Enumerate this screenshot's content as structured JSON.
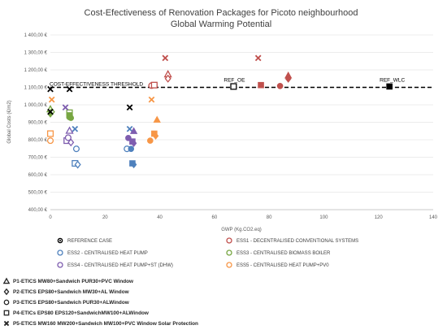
{
  "chart_data": {
    "type": "scatter",
    "title": [
      "Cost-Efectiveness of Renovation Packages for Picoto neighbourhood",
      "Global Warming Potential"
    ],
    "xlabel": "GWP (Kg.CO2.eq)",
    "ylabel": "Global Costs (€/m2)",
    "xlim": [
      0,
      140
    ],
    "ylim": [
      400,
      1400
    ],
    "x_ticks": [
      "0",
      "20",
      "40",
      "60",
      "80",
      "100",
      "120",
      "140"
    ],
    "y_ticks": [
      "400,00 €",
      "500,00 €",
      "600,00 €",
      "700,00 €",
      "800,00 €",
      "900,00 €",
      "1 000,00 €",
      "1 100,00 €",
      "1 200,00 €",
      "1 300,00 €",
      "1 400,00 €"
    ],
    "grid": "horizontal",
    "threshold": {
      "label": "COST-EFFECTIVENESS THRESHOLD",
      "y": 1100,
      "color": "#000000"
    },
    "annotations": [
      {
        "text": "REF_OE",
        "x": 67,
        "y": 1105
      },
      {
        "text": "REF_WLC",
        "x": 124,
        "y": 1105
      }
    ],
    "systems": [
      {
        "key": "ref",
        "name": "REFERENCE CASE",
        "color": "#000000"
      },
      {
        "key": "ess1",
        "name": "ESS1 - DECENTRALISED CONVENTIONAL SYSTEMS",
        "color": "#C0504D"
      },
      {
        "key": "ess2",
        "name": "ESS2 - CENTRALISED HEAT PUMP",
        "color": "#4F81BD"
      },
      {
        "key": "ess3",
        "name": "ESS3 - CENTRALISED BIOMASS BOILER",
        "color": "#77A642"
      },
      {
        "key": "ess4",
        "name": "ESS4 - CENTRALISED HEAT PUMP+ST (DHW)",
        "color": "#7E5DAF"
      },
      {
        "key": "ess5",
        "name": "ESS5 - CENTRALISED HEAT PUMP+PV0",
        "color": "#F79646"
      }
    ],
    "series": [
      {
        "system": "ref",
        "package": "P4",
        "filled": false,
        "points": [
          [
            67,
            1105
          ]
        ]
      },
      {
        "system": "ref",
        "package": "P4",
        "filled": true,
        "points": [
          [
            124,
            1105
          ]
        ]
      },
      {
        "system": "ess1",
        "package": "P1",
        "filled": false,
        "points": [
          [
            43,
            1175
          ]
        ]
      },
      {
        "system": "ess1",
        "package": "P2",
        "filled": false,
        "points": [
          [
            43,
            1150
          ]
        ]
      },
      {
        "system": "ess1",
        "package": "P3",
        "filled": false,
        "points": [
          [
            37,
            1110
          ]
        ]
      },
      {
        "system": "ess1",
        "package": "P4",
        "filled": false,
        "points": [
          [
            38,
            1113
          ]
        ]
      },
      {
        "system": "ess1",
        "package": "P5",
        "filled": false,
        "points": [
          [
            42,
            1268
          ],
          [
            76,
            1268
          ]
        ]
      },
      {
        "system": "ess1",
        "package": "P1",
        "filled": true,
        "points": [
          [
            87,
            1168
          ]
        ]
      },
      {
        "system": "ess1",
        "package": "P2",
        "filled": true,
        "points": [
          [
            87,
            1148
          ]
        ]
      },
      {
        "system": "ess1",
        "package": "P3",
        "filled": true,
        "points": [
          [
            84,
            1108
          ]
        ]
      },
      {
        "system": "ess1",
        "package": "P4",
        "filled": true,
        "points": [
          [
            77,
            1113
          ]
        ]
      },
      {
        "system": "ess2",
        "package": "P3",
        "filled": false,
        "points": [
          [
            9.5,
            748
          ],
          [
            28,
            748
          ]
        ]
      },
      {
        "system": "ess2",
        "package": "P4",
        "filled": false,
        "points": [
          [
            9,
            665
          ]
        ]
      },
      {
        "system": "ess2",
        "package": "P5",
        "filled": false,
        "points": [
          [
            9,
            862
          ],
          [
            29,
            862
          ]
        ]
      },
      {
        "system": "ess2",
        "package": "P2",
        "filled": false,
        "points": [
          [
            10,
            658
          ]
        ]
      },
      {
        "system": "ess2",
        "package": "P4",
        "filled": true,
        "points": [
          [
            30,
            665
          ]
        ]
      },
      {
        "system": "ess2",
        "package": "P2",
        "filled": true,
        "points": [
          [
            30.5,
            658
          ]
        ]
      },
      {
        "system": "ess2",
        "package": "P3",
        "filled": true,
        "points": [
          [
            29.5,
            748
          ]
        ]
      },
      {
        "system": "ess3",
        "package": "P1",
        "filled": false,
        "points": [
          [
            0,
            975
          ]
        ]
      },
      {
        "system": "ess3",
        "package": "P2",
        "filled": false,
        "points": [
          [
            0.5,
            960
          ]
        ]
      },
      {
        "system": "ess3",
        "package": "P4",
        "filled": false,
        "points": [
          [
            7,
            955
          ]
        ]
      },
      {
        "system": "ess3",
        "package": "P3",
        "filled": false,
        "points": [
          [
            7,
            930
          ]
        ]
      },
      {
        "system": "ess3",
        "package": "P2",
        "filled": true,
        "points": [
          [
            0,
            948
          ]
        ]
      },
      {
        "system": "ess3",
        "package": "P4",
        "filled": true,
        "points": [
          [
            7,
            940
          ]
        ]
      },
      {
        "system": "ess3",
        "package": "P3",
        "filled": true,
        "points": [
          [
            7.5,
            925
          ]
        ]
      },
      {
        "system": "ess4",
        "package": "P1",
        "filled": false,
        "points": [
          [
            7,
            852
          ]
        ]
      },
      {
        "system": "ess4",
        "package": "P4",
        "filled": false,
        "points": [
          [
            6,
            795
          ]
        ]
      },
      {
        "system": "ess4",
        "package": "P2",
        "filled": false,
        "points": [
          [
            7.5,
            785
          ]
        ]
      },
      {
        "system": "ess4",
        "package": "P3",
        "filled": false,
        "points": [
          [
            6.5,
            812
          ]
        ]
      },
      {
        "system": "ess4",
        "package": "P5",
        "filled": false,
        "points": [
          [
            5.5,
            985
          ]
        ]
      },
      {
        "system": "ess4",
        "package": "P1",
        "filled": true,
        "points": [
          [
            30.5,
            850
          ]
        ]
      },
      {
        "system": "ess4",
        "package": "P3",
        "filled": true,
        "points": [
          [
            28.5,
            810
          ]
        ]
      },
      {
        "system": "ess4",
        "package": "P4",
        "filled": true,
        "points": [
          [
            30,
            790
          ]
        ]
      },
      {
        "system": "ess4",
        "package": "P2",
        "filled": true,
        "points": [
          [
            30.5,
            780
          ]
        ]
      },
      {
        "system": "ess5",
        "package": "P4",
        "filled": false,
        "points": [
          [
            0,
            835
          ]
        ]
      },
      {
        "system": "ess5",
        "package": "P3",
        "filled": false,
        "points": [
          [
            0,
            795
          ]
        ]
      },
      {
        "system": "ess5",
        "package": "P5",
        "filled": false,
        "points": [
          [
            0.5,
            1030
          ],
          [
            37,
            1030
          ]
        ]
      },
      {
        "system": "ess5",
        "package": "P1",
        "filled": true,
        "points": [
          [
            39,
            915
          ]
        ]
      },
      {
        "system": "ess5",
        "package": "P4",
        "filled": true,
        "points": [
          [
            38,
            835
          ]
        ]
      },
      {
        "system": "ess5",
        "package": "P2",
        "filled": true,
        "points": [
          [
            38.5,
            822
          ]
        ]
      },
      {
        "system": "ess5",
        "package": "P3",
        "filled": true,
        "points": [
          [
            36.5,
            795
          ]
        ]
      },
      {
        "system": "ref",
        "package": "P5",
        "filled": false,
        "points": [
          [
            0,
            1090
          ],
          [
            7,
            1090
          ],
          [
            29,
            985
          ]
        ]
      },
      {
        "system": "ref",
        "package": "P5",
        "filled": false,
        "points": [
          [
            0,
            960
          ]
        ]
      }
    ],
    "packages": [
      {
        "key": "P1",
        "marker": "triangle",
        "name": "P1-ETICS MW80+Sandwich PUR30+PVC Window"
      },
      {
        "key": "P2",
        "marker": "diamond",
        "name": "P2-ETICS EPS80+Sandwich MW30+AL Window"
      },
      {
        "key": "P3",
        "marker": "circle",
        "name": "P3-ETICS EPS80+Sandwich PUR30+ALWindow"
      },
      {
        "key": "P4",
        "marker": "square",
        "name": "P4-ETICs EPS80 EPS120+SandwichMW100+ALWindow"
      },
      {
        "key": "P5",
        "marker": "cross",
        "name": "P5-ETICS MW160 MW200+Sandwich MW100+PVC Window Solar Protection"
      }
    ]
  }
}
